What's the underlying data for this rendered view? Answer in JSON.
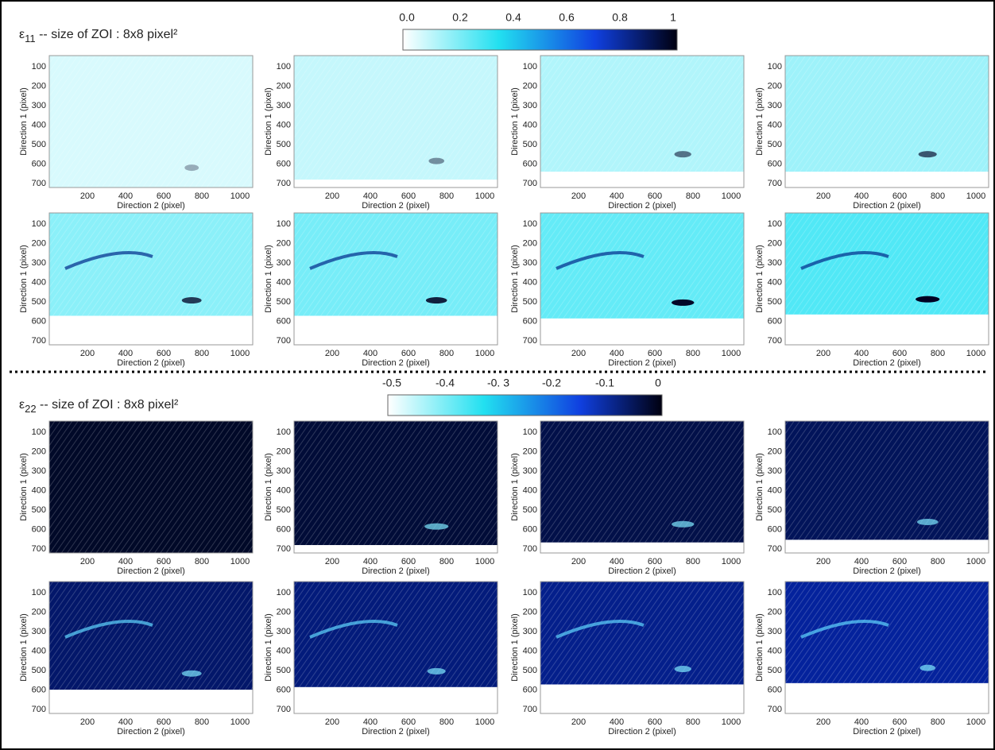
{
  "sections": [
    {
      "symbol": "ε",
      "subscript": "11",
      "caption": "-- size of ZOI : 8x8 pixel²",
      "colorbar_ticks": [
        "0.0",
        "0.2",
        "0.4",
        "0.6",
        "0.8",
        "1"
      ]
    },
    {
      "symbol": "ε",
      "subscript": "22",
      "caption": "-- size of ZOI : 8x8 pixel²",
      "colorbar_ticks": [
        "-0.5",
        "-0.4",
        "-0. 3",
        "-0.2",
        "-0.1",
        "0"
      ]
    }
  ],
  "axes": {
    "xlabel": "Direction 2 (pixel)",
    "ylabel": "Direction 1 (pixel)",
    "xticks": [
      "200",
      "400",
      "600",
      "800",
      "1000"
    ],
    "yticks": [
      "100",
      "200",
      "300",
      "400",
      "500",
      "600",
      "700"
    ]
  }
}
